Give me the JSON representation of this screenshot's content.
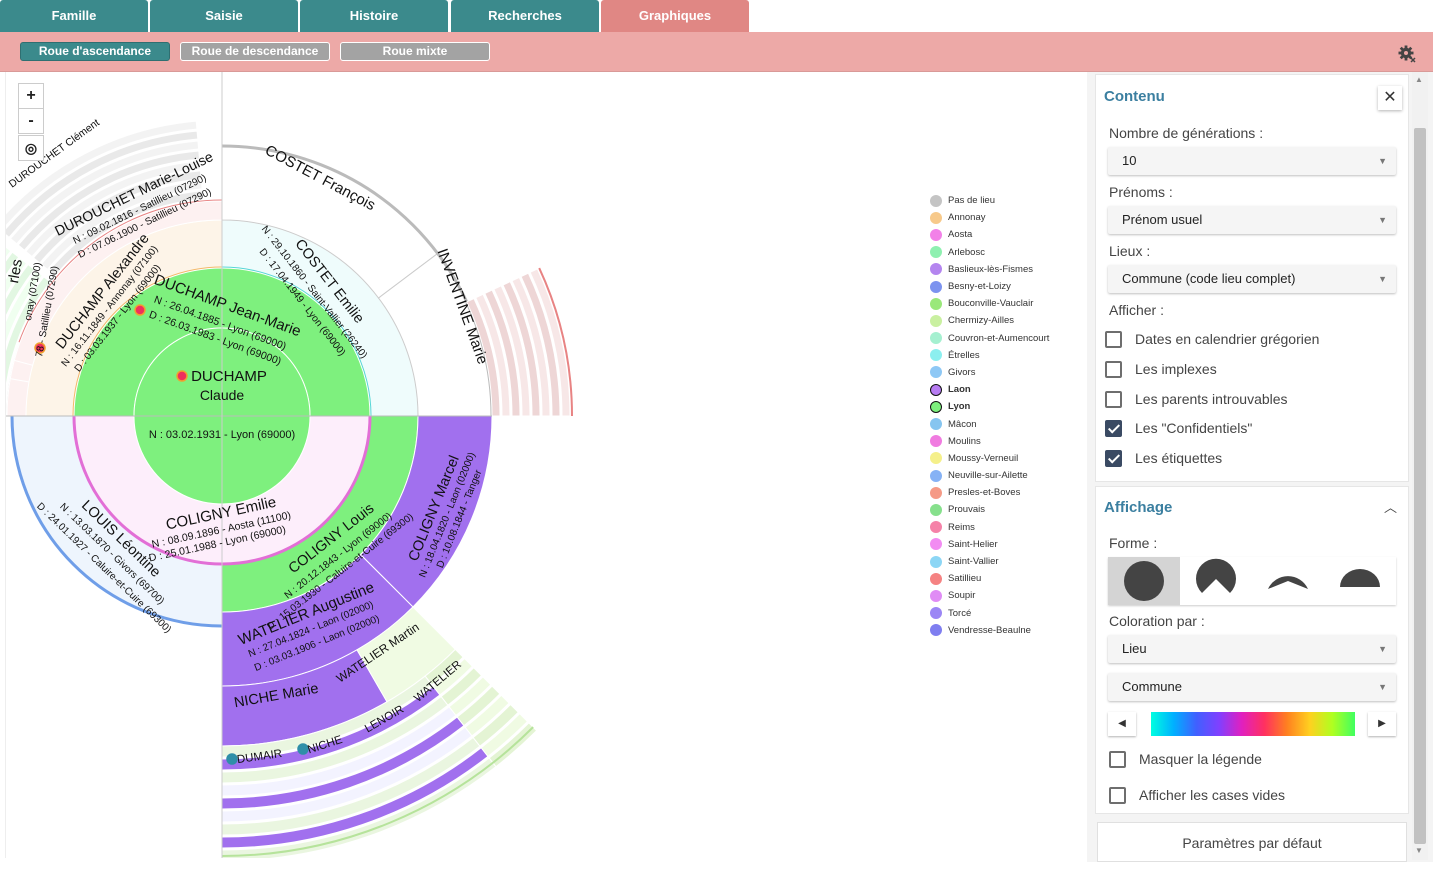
{
  "tabs": [
    {
      "label": "Famille",
      "active": false
    },
    {
      "label": "Saisie",
      "active": false
    },
    {
      "label": "Histoire",
      "active": false
    },
    {
      "label": "Recherches",
      "active": false
    },
    {
      "label": "Graphiques",
      "active": true
    }
  ],
  "subtabs": [
    {
      "label": "Roue d'ascendance",
      "active": true
    },
    {
      "label": "Roue de descendance",
      "active": false
    },
    {
      "label": "Roue mixte",
      "active": false
    }
  ],
  "zoom": {
    "plus": "+",
    "minus": "-"
  },
  "icons": {
    "settings": "gear-icon",
    "locate": "locate-icon",
    "close": "close-icon",
    "collapse": "chevron-up-icon"
  },
  "fan": {
    "center": {
      "line1": "DUCHAMP",
      "line2": "Claude",
      "line3": "N : 03.02.1931 - Lyon (69000)"
    },
    "father": {
      "name": "DUCHAMP Jean-Marie",
      "n": "N : 26.04.1885 - Lyon (69000)",
      "d": "D : 26.03.1983 - Lyon (69000)"
    },
    "mother": {
      "name": "COLIGNY Emilie",
      "n": "N : 08.09.1896 - Aosta (11100)",
      "d": "D : 25.01.1988 - Lyon (69000)"
    },
    "ff": {
      "name": "DUCHAMP Alexandre",
      "n": "N : 16.11.1849 - Annonay (07100)",
      "d": "D : 03.03.1937 - Lyon (69000)"
    },
    "fm": {
      "name": "COSTET Emilie",
      "n": "N : 29.10.1860 - Saint-Vallier (26240)",
      "d": "D : 17.04.1949 - Lyon (69000)"
    },
    "mf": {
      "name": "COLIGNY Louis",
      "n": "N : 20.12.1843 - Lyon (69000)",
      "d": "D : 15.03.1930 - Caluire-et-Cuire (69300)"
    },
    "mm": {
      "name": "LOUIS Léontine",
      "n": "N : 13.03.1870 - Givors (69700)",
      "d": "D : 24.01.1927 - Caluire-et-Cuire (69300)"
    },
    "g4a": {
      "name": "DUROUCHET Marie-Louise",
      "n": "N : 09.02.1816 - Satillieu (07290)",
      "d": "D : 07.06.1900 - Satillieu (07290)"
    },
    "g4b": {
      "name": "COSTET François"
    },
    "g4c": {
      "name": "INVENTINE Marie"
    },
    "g4d": {
      "name": "COLIGNY Marcel",
      "n": "N : 18.04.1820 - Laon (02000)",
      "d": "D : 10.08.1844 - Tanger"
    },
    "g4e": {
      "name": "WATELIER Augustine",
      "n": "N : 27.04.1824 - Laon (02000)",
      "d": "D : 03.03.1906 - Laon (02000)"
    },
    "g4f_partial": "rles",
    "g4f_n_partial": "onay (07100)",
    "g4f_d_partial": "78 - Satillieu (07290)",
    "g5": {
      "a": "NICHE Marie",
      "b": "WATELIER Martin",
      "c": "DUMAIR",
      "d": "NICHE",
      "e": "LENOIR",
      "f": "WATELIER",
      "g": "DUROUCHET Clément"
    }
  },
  "legend": [
    {
      "label": "Pas de lieu",
      "color": "#c4c4c4"
    },
    {
      "label": "Annonay",
      "color": "#f7c98a"
    },
    {
      "label": "Aosta",
      "color": "#f281e8"
    },
    {
      "label": "Arlebosc",
      "color": "#8ef0b0"
    },
    {
      "label": "Baslieux-lès-Fismes",
      "color": "#b485ef"
    },
    {
      "label": "Besny-et-Loizy",
      "color": "#7c93ef"
    },
    {
      "label": "Bouconville-Vauclair",
      "color": "#9ae87a"
    },
    {
      "label": "Chermizy-Ailles",
      "color": "#c9f0a0"
    },
    {
      "label": "Couvron-et-Aumencourt",
      "color": "#a5f0d0"
    },
    {
      "label": "Étrelles",
      "color": "#8cefef"
    },
    {
      "label": "Givors",
      "color": "#8ec8f5"
    },
    {
      "label": "Laon",
      "color": "#b77cf2",
      "bold": true
    },
    {
      "label": "Lyon",
      "color": "#7df07d",
      "bold": true
    },
    {
      "label": "Mâcon",
      "color": "#86c5f0"
    },
    {
      "label": "Moulins",
      "color": "#f07be0"
    },
    {
      "label": "Moussy-Verneuil",
      "color": "#f5f08a"
    },
    {
      "label": "Neuville-sur-Ailette",
      "color": "#86b2f5"
    },
    {
      "label": "Presles-et-Boves",
      "color": "#f59a86"
    },
    {
      "label": "Prouvais",
      "color": "#86e08c"
    },
    {
      "label": "Reims",
      "color": "#f582a8"
    },
    {
      "label": "Saint-Helier",
      "color": "#f28cf2"
    },
    {
      "label": "Saint-Vallier",
      "color": "#8cd6f5"
    },
    {
      "label": "Satillieu",
      "color": "#f58282"
    },
    {
      "label": "Soupir",
      "color": "#e08cf5"
    },
    {
      "label": "Torcé",
      "color": "#9b86f5"
    },
    {
      "label": "Vendresse-Beaulne",
      "color": "#7f7ef0"
    }
  ],
  "panel": {
    "contenu": {
      "title": "Contenu",
      "generations_label": "Nombre de générations :",
      "generations_value": "10",
      "prenoms_label": "Prénoms :",
      "prenoms_value": "Prénom usuel",
      "lieux_label": "Lieux :",
      "lieux_value": "Commune (code lieu complet)",
      "afficher_label": "Afficher :",
      "checks": [
        {
          "label": "Dates en calendrier grégorien",
          "checked": false
        },
        {
          "label": "Les implexes",
          "checked": false
        },
        {
          "label": "Les parents introuvables",
          "checked": false
        },
        {
          "label": "Les \"Confidentiels\"",
          "checked": true
        },
        {
          "label": "Les étiquettes",
          "checked": true
        }
      ]
    },
    "affichage": {
      "title": "Affichage",
      "forme_label": "Forme :",
      "coloration_label": "Coloration par :",
      "coloration_value": "Lieu",
      "coloration_sub": "Commune",
      "checks": [
        {
          "label": "Masquer la légende",
          "checked": false
        },
        {
          "label": "Afficher les cases vides",
          "checked": false
        }
      ]
    },
    "reset_button": "Paramètres par défaut"
  }
}
